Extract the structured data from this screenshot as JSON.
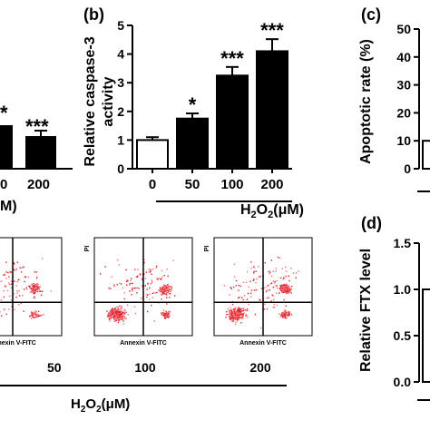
{
  "panels": {
    "a_partial": {
      "ylabel_fragment": "",
      "xlabel_fragment": "M)",
      "visible_ticks": [
        "0",
        "200"
      ],
      "star_partial": "*",
      "star_200": "***"
    },
    "b": {
      "letter": "(b)"
    },
    "c": {
      "letter": "(c)"
    },
    "d": {
      "letter": "(d)"
    },
    "flow": {
      "axis_x_label": "Annexin V-FITC",
      "axis_y_label": "PI",
      "dose_labels": [
        "50",
        "100",
        "200"
      ],
      "xlabel_main": "H",
      "xlabel_sub": "2",
      "xlabel_end": "O",
      "xlabel_sub2": "2",
      "xlabel_unit": "(μM)"
    }
  },
  "chart_data": [
    {
      "id": "b",
      "type": "bar",
      "categories": [
        "0",
        "50",
        "100",
        "200"
      ],
      "values": [
        1.0,
        1.75,
        3.25,
        4.1
      ],
      "errors": [
        0.1,
        0.18,
        0.3,
        0.42
      ],
      "significance": [
        "",
        "*",
        "***",
        "***"
      ],
      "ylabel_lines": [
        "Relative caspase-3",
        "activity"
      ],
      "yticks": [
        0,
        1,
        2,
        3,
        4,
        5
      ],
      "ylim": [
        0,
        5
      ],
      "xlabel": {
        "base": "H",
        "sub1": "2",
        "mid": "O",
        "sub2": "2",
        "unit": "(μM)"
      },
      "bar_fill": [
        "#ffffff",
        "#000000",
        "#000000",
        "#000000"
      ]
    },
    {
      "id": "c",
      "type": "bar",
      "ylabel": "Apoptotic rate (%)",
      "yticks": [
        0,
        10,
        20,
        30,
        40,
        50
      ],
      "ylim": [
        0,
        50
      ],
      "visible_values": [
        10
      ]
    },
    {
      "id": "d",
      "type": "bar",
      "ylabel": "Relative FTX level",
      "yticks": [
        "0.0",
        "0.5",
        "1.0",
        "1.5"
      ],
      "ylim": [
        0,
        1.5
      ],
      "visible_values": [
        1.0
      ]
    },
    {
      "id": "a",
      "type": "bar",
      "categories": [
        "0",
        "200"
      ],
      "visible_ticks": [
        "0",
        "200"
      ]
    }
  ]
}
